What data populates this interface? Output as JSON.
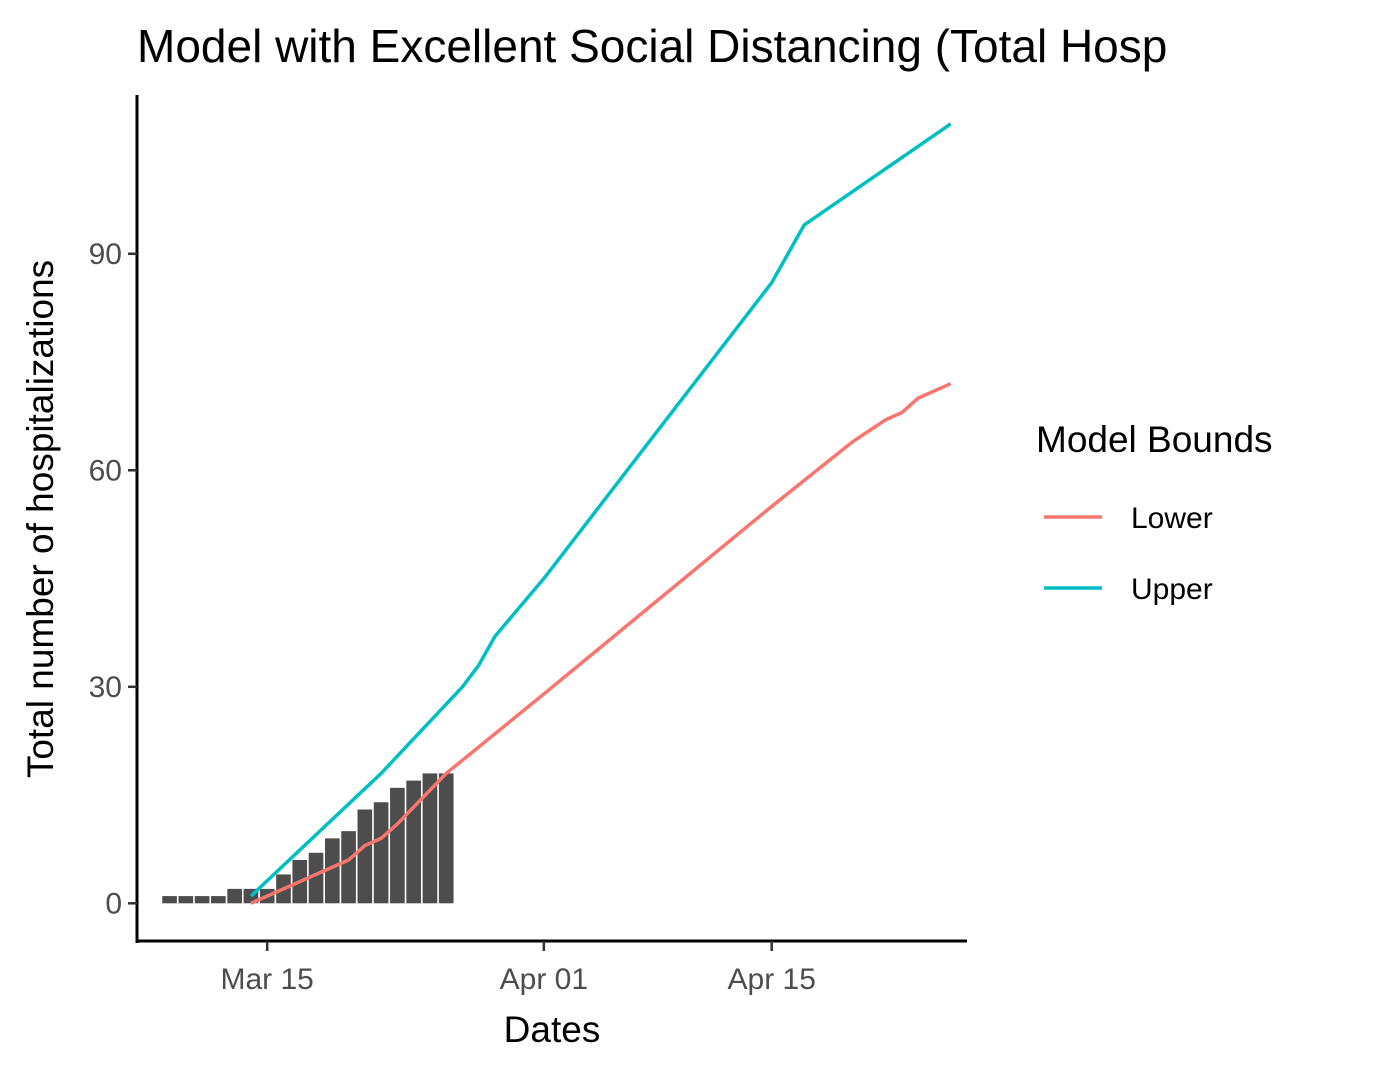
{
  "chart_data": {
    "type": "bar+line",
    "title": "Model with Excellent Social Distancing (Total Hosp",
    "xlabel": "Dates",
    "ylabel": "Total number of hospitalizations",
    "x_type": "date",
    "xlim": [
      "2020-03-07",
      "2020-04-27"
    ],
    "ylim": [
      -5.5,
      112
    ],
    "x_ticks": [
      {
        "date": "2020-03-15",
        "label": "Mar 15"
      },
      {
        "date": "2020-04-01",
        "label": "Apr 01"
      },
      {
        "date": "2020-04-15",
        "label": "Apr 15"
      }
    ],
    "y_ticks": [
      {
        "value": 0,
        "label": "0"
      },
      {
        "value": 30,
        "label": "30"
      },
      {
        "value": 60,
        "label": "60"
      },
      {
        "value": 90,
        "label": "90"
      }
    ],
    "grid": false,
    "bars": {
      "color": "#4d4d4d",
      "dates": [
        "2020-03-09",
        "2020-03-10",
        "2020-03-11",
        "2020-03-12",
        "2020-03-13",
        "2020-03-14",
        "2020-03-15",
        "2020-03-16",
        "2020-03-17",
        "2020-03-18",
        "2020-03-19",
        "2020-03-20",
        "2020-03-21",
        "2020-03-22",
        "2020-03-23",
        "2020-03-24",
        "2020-03-25",
        "2020-03-26"
      ],
      "values": [
        1,
        1,
        1,
        1,
        2,
        2,
        2,
        4,
        6,
        7,
        9,
        10,
        13,
        14,
        16,
        17,
        18,
        18
      ]
    },
    "legend": {
      "title": "Model Bounds",
      "position": "right"
    },
    "series": [
      {
        "name": "Lower",
        "color": "#f8766d",
        "points": [
          [
            "2020-03-14",
            0
          ],
          [
            "2020-03-20",
            6
          ],
          [
            "2020-03-21",
            8
          ],
          [
            "2020-03-22",
            9
          ],
          [
            "2020-03-23",
            11
          ],
          [
            "2020-03-26",
            18
          ],
          [
            "2020-03-29",
            23.5
          ],
          [
            "2020-04-01",
            29
          ],
          [
            "2020-04-15",
            55
          ],
          [
            "2020-04-20",
            64
          ],
          [
            "2020-04-22",
            67
          ],
          [
            "2020-04-23",
            68
          ],
          [
            "2020-04-24",
            70
          ],
          [
            "2020-04-26",
            72
          ]
        ]
      },
      {
        "name": "Upper",
        "color": "#00bfc4",
        "points": [
          [
            "2020-03-14",
            1
          ],
          [
            "2020-03-22",
            18
          ],
          [
            "2020-03-27",
            30
          ],
          [
            "2020-03-28",
            33
          ],
          [
            "2020-03-29",
            37
          ],
          [
            "2020-04-01",
            45
          ],
          [
            "2020-04-15",
            86
          ],
          [
            "2020-04-17",
            94
          ],
          [
            "2020-04-26",
            108
          ]
        ]
      }
    ]
  }
}
